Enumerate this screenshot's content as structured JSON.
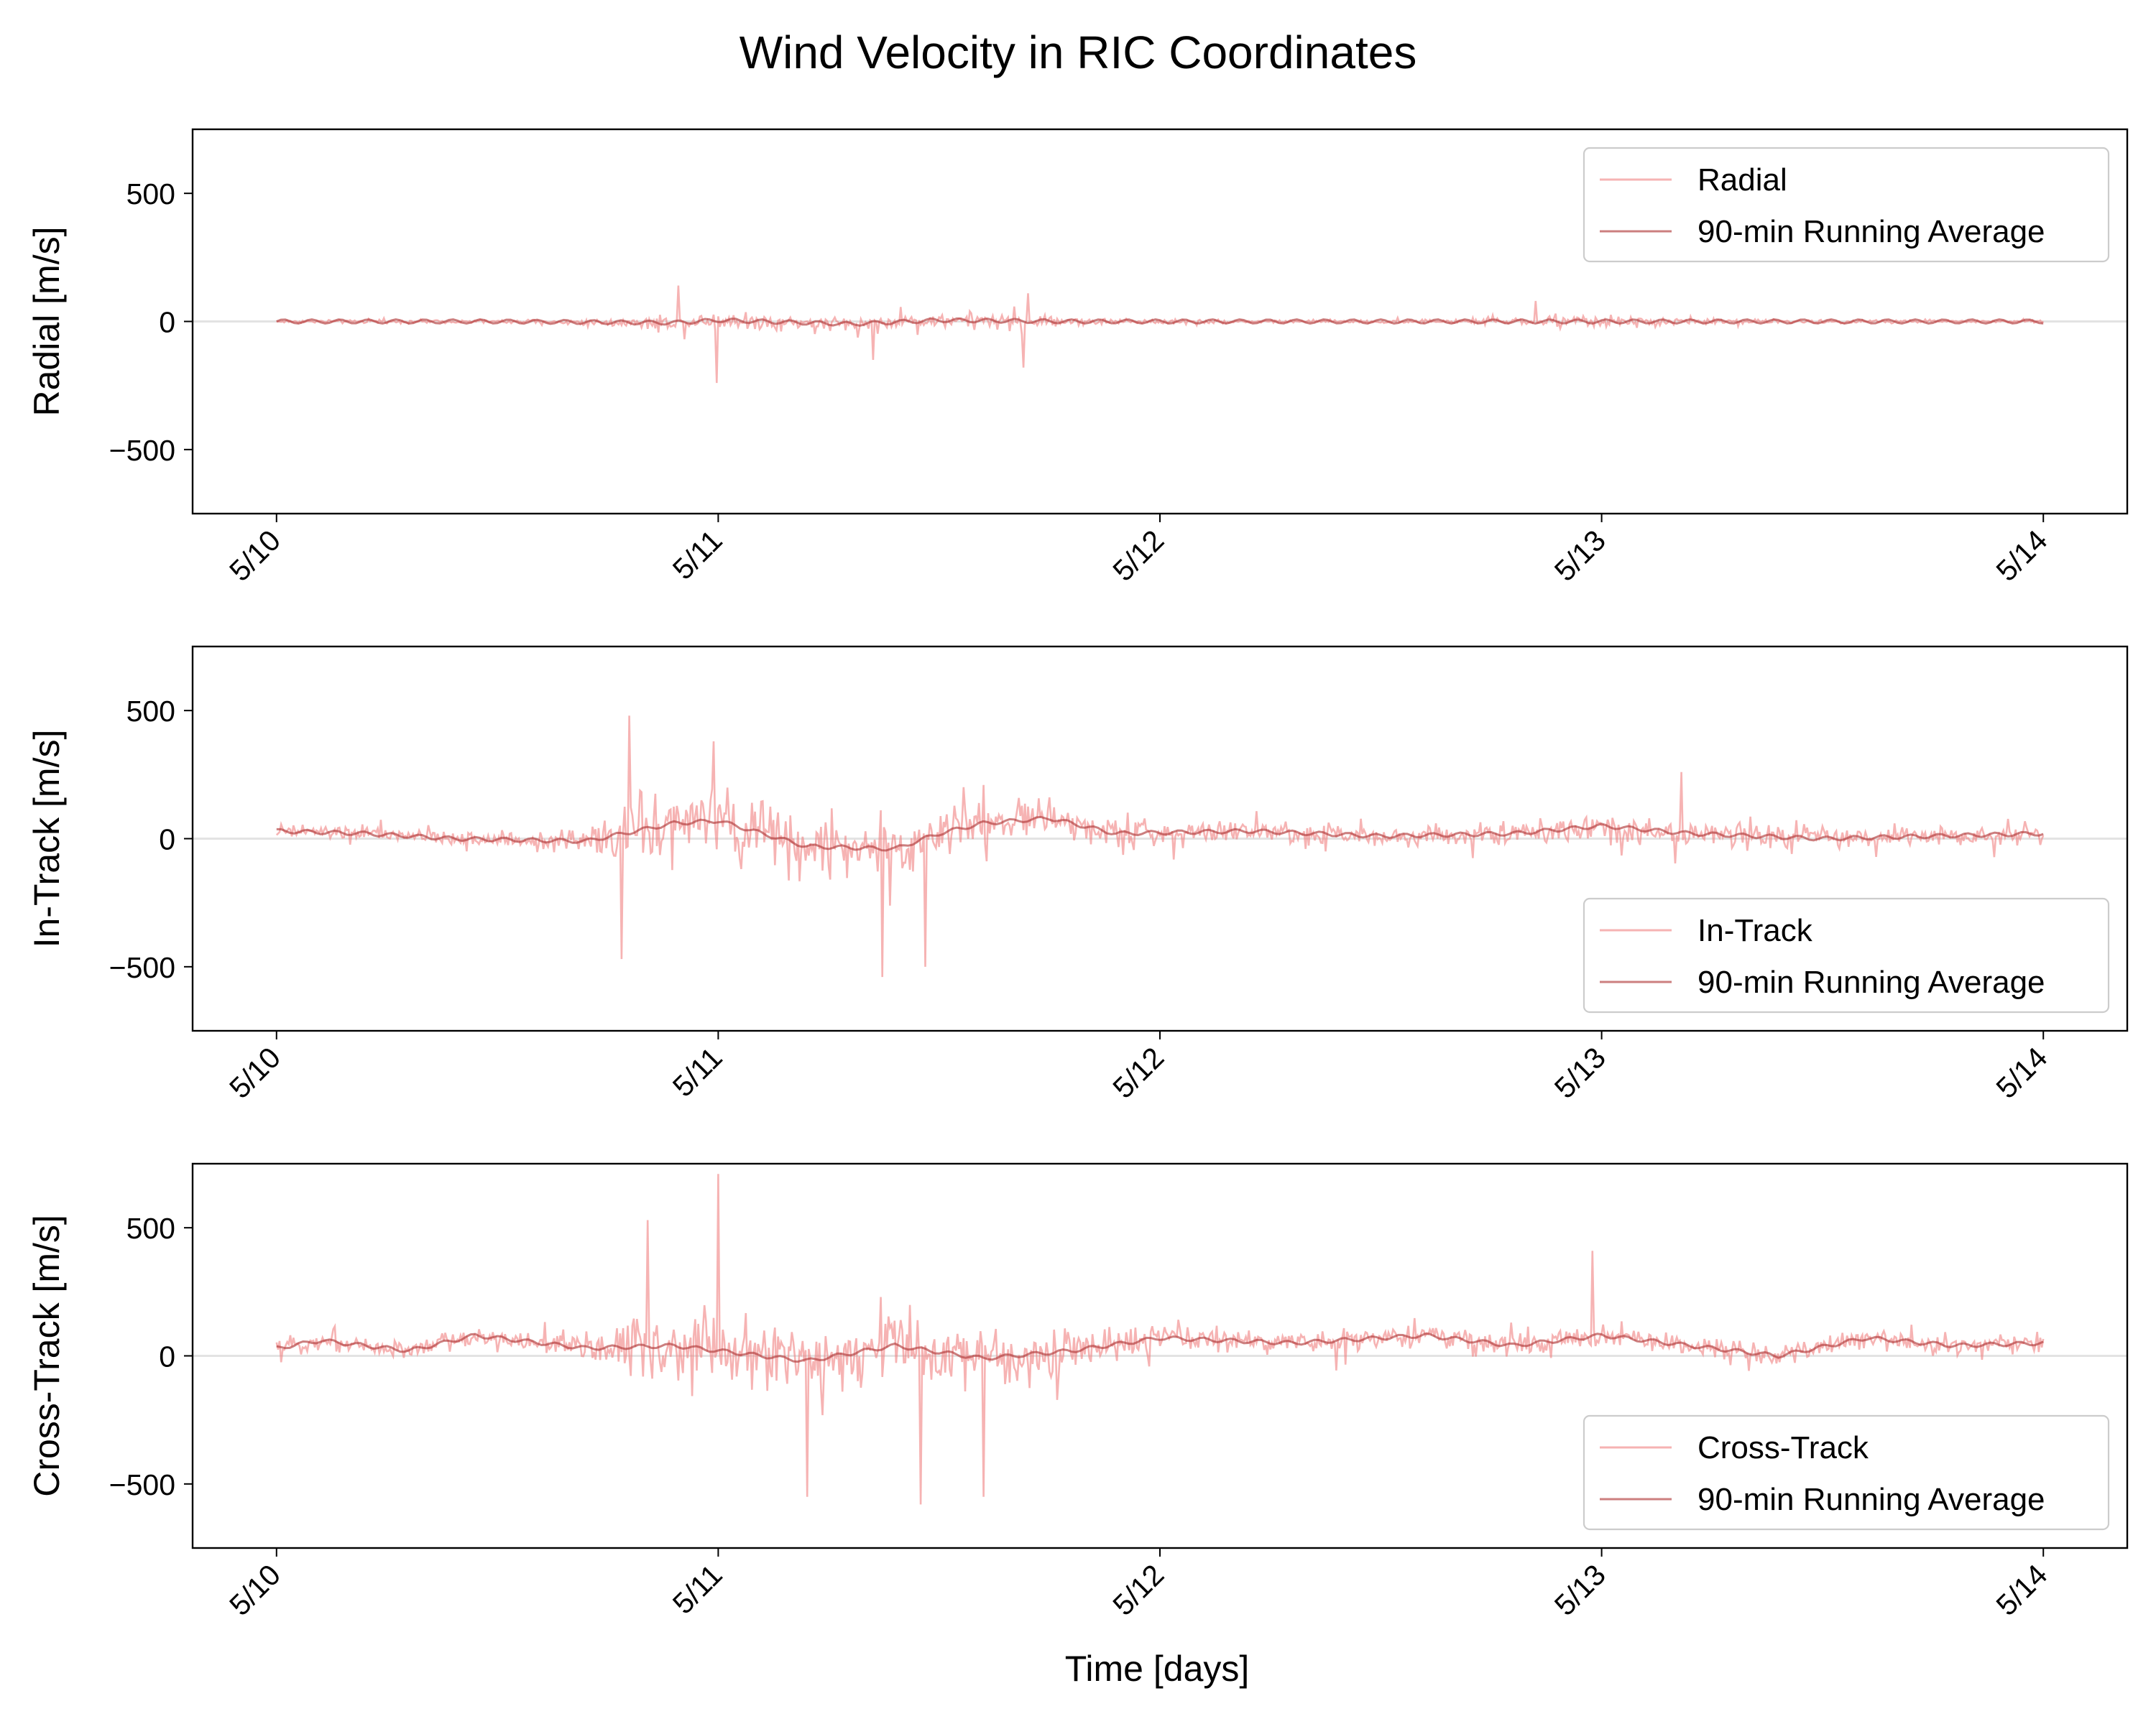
{
  "figure": {
    "title": "Wind Velocity in RIC Coordinates",
    "xlabel": "Time [days]"
  },
  "colors": {
    "raw": "#f08080",
    "average": "#b03a3a",
    "zero_line": "#e3e3e3"
  },
  "chart_data": [
    {
      "type": "line",
      "ylabel": "Radial [m/s]",
      "ylim": [
        -750,
        750
      ],
      "yticks": [
        500,
        0,
        -500
      ],
      "ytick_labels": [
        "500",
        "0",
        "−500"
      ],
      "xlim_days": [
        -0.19,
        4.19
      ],
      "xticks_days": [
        0,
        1,
        2,
        3,
        4
      ],
      "xtick_labels": [
        "5/10",
        "5/11",
        "5/12",
        "5/13",
        "5/14"
      ],
      "legend_position": "upper right",
      "series": [
        {
          "name": "Radial",
          "style": "raw",
          "sample_interval_min": 5,
          "envelope_x_days": [
            0.0,
            0.5,
            0.75,
            0.95,
            1.0,
            1.2,
            1.45,
            1.7,
            1.85,
            2.2,
            2.6,
            2.85,
            2.9,
            3.3,
            4.0
          ],
          "envelope_amp_ms": [
            20,
            20,
            45,
            90,
            110,
            90,
            80,
            80,
            40,
            20,
            20,
            40,
            70,
            25,
            15
          ],
          "extremes": [
            {
              "x": 0.91,
              "y": 140
            },
            {
              "x": 0.995,
              "y": -240
            },
            {
              "x": 1.35,
              "y": -150
            },
            {
              "x": 1.7,
              "y": 110
            },
            {
              "x": 1.69,
              "y": -180
            },
            {
              "x": 2.85,
              "y": 80
            }
          ]
        },
        {
          "name": "90-min Running Average",
          "style": "average",
          "window_min": 90,
          "x_days": [
            0.0,
            0.5,
            0.9,
            1.0,
            1.3,
            1.5,
            1.8,
            2.0,
            2.5,
            3.0,
            3.5,
            4.0
          ],
          "y_ms": [
            0,
            0,
            -5,
            5,
            -10,
            5,
            0,
            0,
            0,
            0,
            0,
            0
          ]
        }
      ]
    },
    {
      "type": "line",
      "ylabel": "In-Track [m/s]",
      "ylim": [
        -750,
        750
      ],
      "yticks": [
        500,
        0,
        -500
      ],
      "ytick_labels": [
        "500",
        "0",
        "−500"
      ],
      "xlim_days": [
        -0.19,
        4.19
      ],
      "xticks_days": [
        0,
        1,
        2,
        3,
        4
      ],
      "xtick_labels": [
        "5/10",
        "5/11",
        "5/12",
        "5/13",
        "5/14"
      ],
      "legend_position": "lower right",
      "series": [
        {
          "name": "In-Track",
          "style": "raw",
          "sample_interval_min": 5,
          "envelope_x_days": [
            0.0,
            0.5,
            0.72,
            0.8,
            1.0,
            1.3,
            1.5,
            1.75,
            2.0,
            2.5,
            3.0,
            3.2,
            3.5,
            4.0
          ],
          "envelope_amp_ms": [
            90,
            80,
            150,
            380,
            380,
            330,
            300,
            220,
            150,
            120,
            160,
            160,
            120,
            100
          ],
          "extremes": [
            {
              "x": 0.8,
              "y": 480
            },
            {
              "x": 0.78,
              "y": -470
            },
            {
              "x": 1.37,
              "y": -540
            },
            {
              "x": 1.47,
              "y": -500
            },
            {
              "x": 0.99,
              "y": 380
            },
            {
              "x": 3.18,
              "y": -200
            },
            {
              "x": 3.18,
              "y": 260
            }
          ]
        },
        {
          "name": "90-min Running Average",
          "style": "average",
          "window_min": 90,
          "x_days": [
            0.0,
            0.2,
            0.4,
            0.7,
            0.9,
            1.0,
            1.2,
            1.4,
            1.5,
            1.6,
            1.75,
            1.9,
            2.2,
            2.5,
            2.8,
            3.0,
            3.2,
            3.5,
            4.0
          ],
          "y_ms": [
            30,
            20,
            0,
            -10,
            60,
            70,
            -30,
            -40,
            20,
            60,
            80,
            20,
            30,
            10,
            20,
            50,
            20,
            0,
            20
          ]
        }
      ]
    },
    {
      "type": "line",
      "ylabel": "Cross-Track [m/s]",
      "ylim": [
        -750,
        750
      ],
      "yticks": [
        500,
        0,
        -500
      ],
      "ytick_labels": [
        "500",
        "0",
        "−500"
      ],
      "xlim_days": [
        -0.19,
        4.19
      ],
      "xticks_days": [
        0,
        1,
        2,
        3,
        4
      ],
      "xtick_labels": [
        "5/10",
        "5/11",
        "5/12",
        "5/13",
        "5/14"
      ],
      "legend_position": "lower right",
      "series": [
        {
          "name": "Cross-Track",
          "style": "raw",
          "sample_interval_min": 5,
          "envelope_x_days": [
            0.0,
            0.5,
            0.72,
            0.8,
            1.0,
            1.3,
            1.5,
            1.75,
            2.0,
            2.5,
            3.0,
            3.5,
            4.0
          ],
          "envelope_amp_ms": [
            110,
            110,
            180,
            400,
            420,
            380,
            380,
            300,
            150,
            120,
            130,
            120,
            110
          ],
          "extremes": [
            {
              "x": 1.0,
              "y": 710
            },
            {
              "x": 1.2,
              "y": -550
            },
            {
              "x": 1.46,
              "y": -580
            },
            {
              "x": 1.6,
              "y": -550
            },
            {
              "x": 0.84,
              "y": 530
            },
            {
              "x": 2.98,
              "y": 410
            }
          ]
        },
        {
          "name": "90-min Running Average",
          "style": "average",
          "window_min": 90,
          "x_days": [
            0.0,
            0.1,
            0.3,
            0.45,
            0.7,
            0.9,
            1.0,
            1.2,
            1.4,
            1.6,
            1.8,
            2.0,
            2.3,
            2.6,
            2.8,
            3.0,
            3.2,
            3.4,
            3.6,
            3.8,
            4.0
          ],
          "y_ms": [
            30,
            60,
            20,
            80,
            30,
            40,
            20,
            -20,
            40,
            -10,
            20,
            70,
            50,
            80,
            40,
            80,
            40,
            0,
            70,
            40,
            50
          ]
        }
      ]
    }
  ]
}
